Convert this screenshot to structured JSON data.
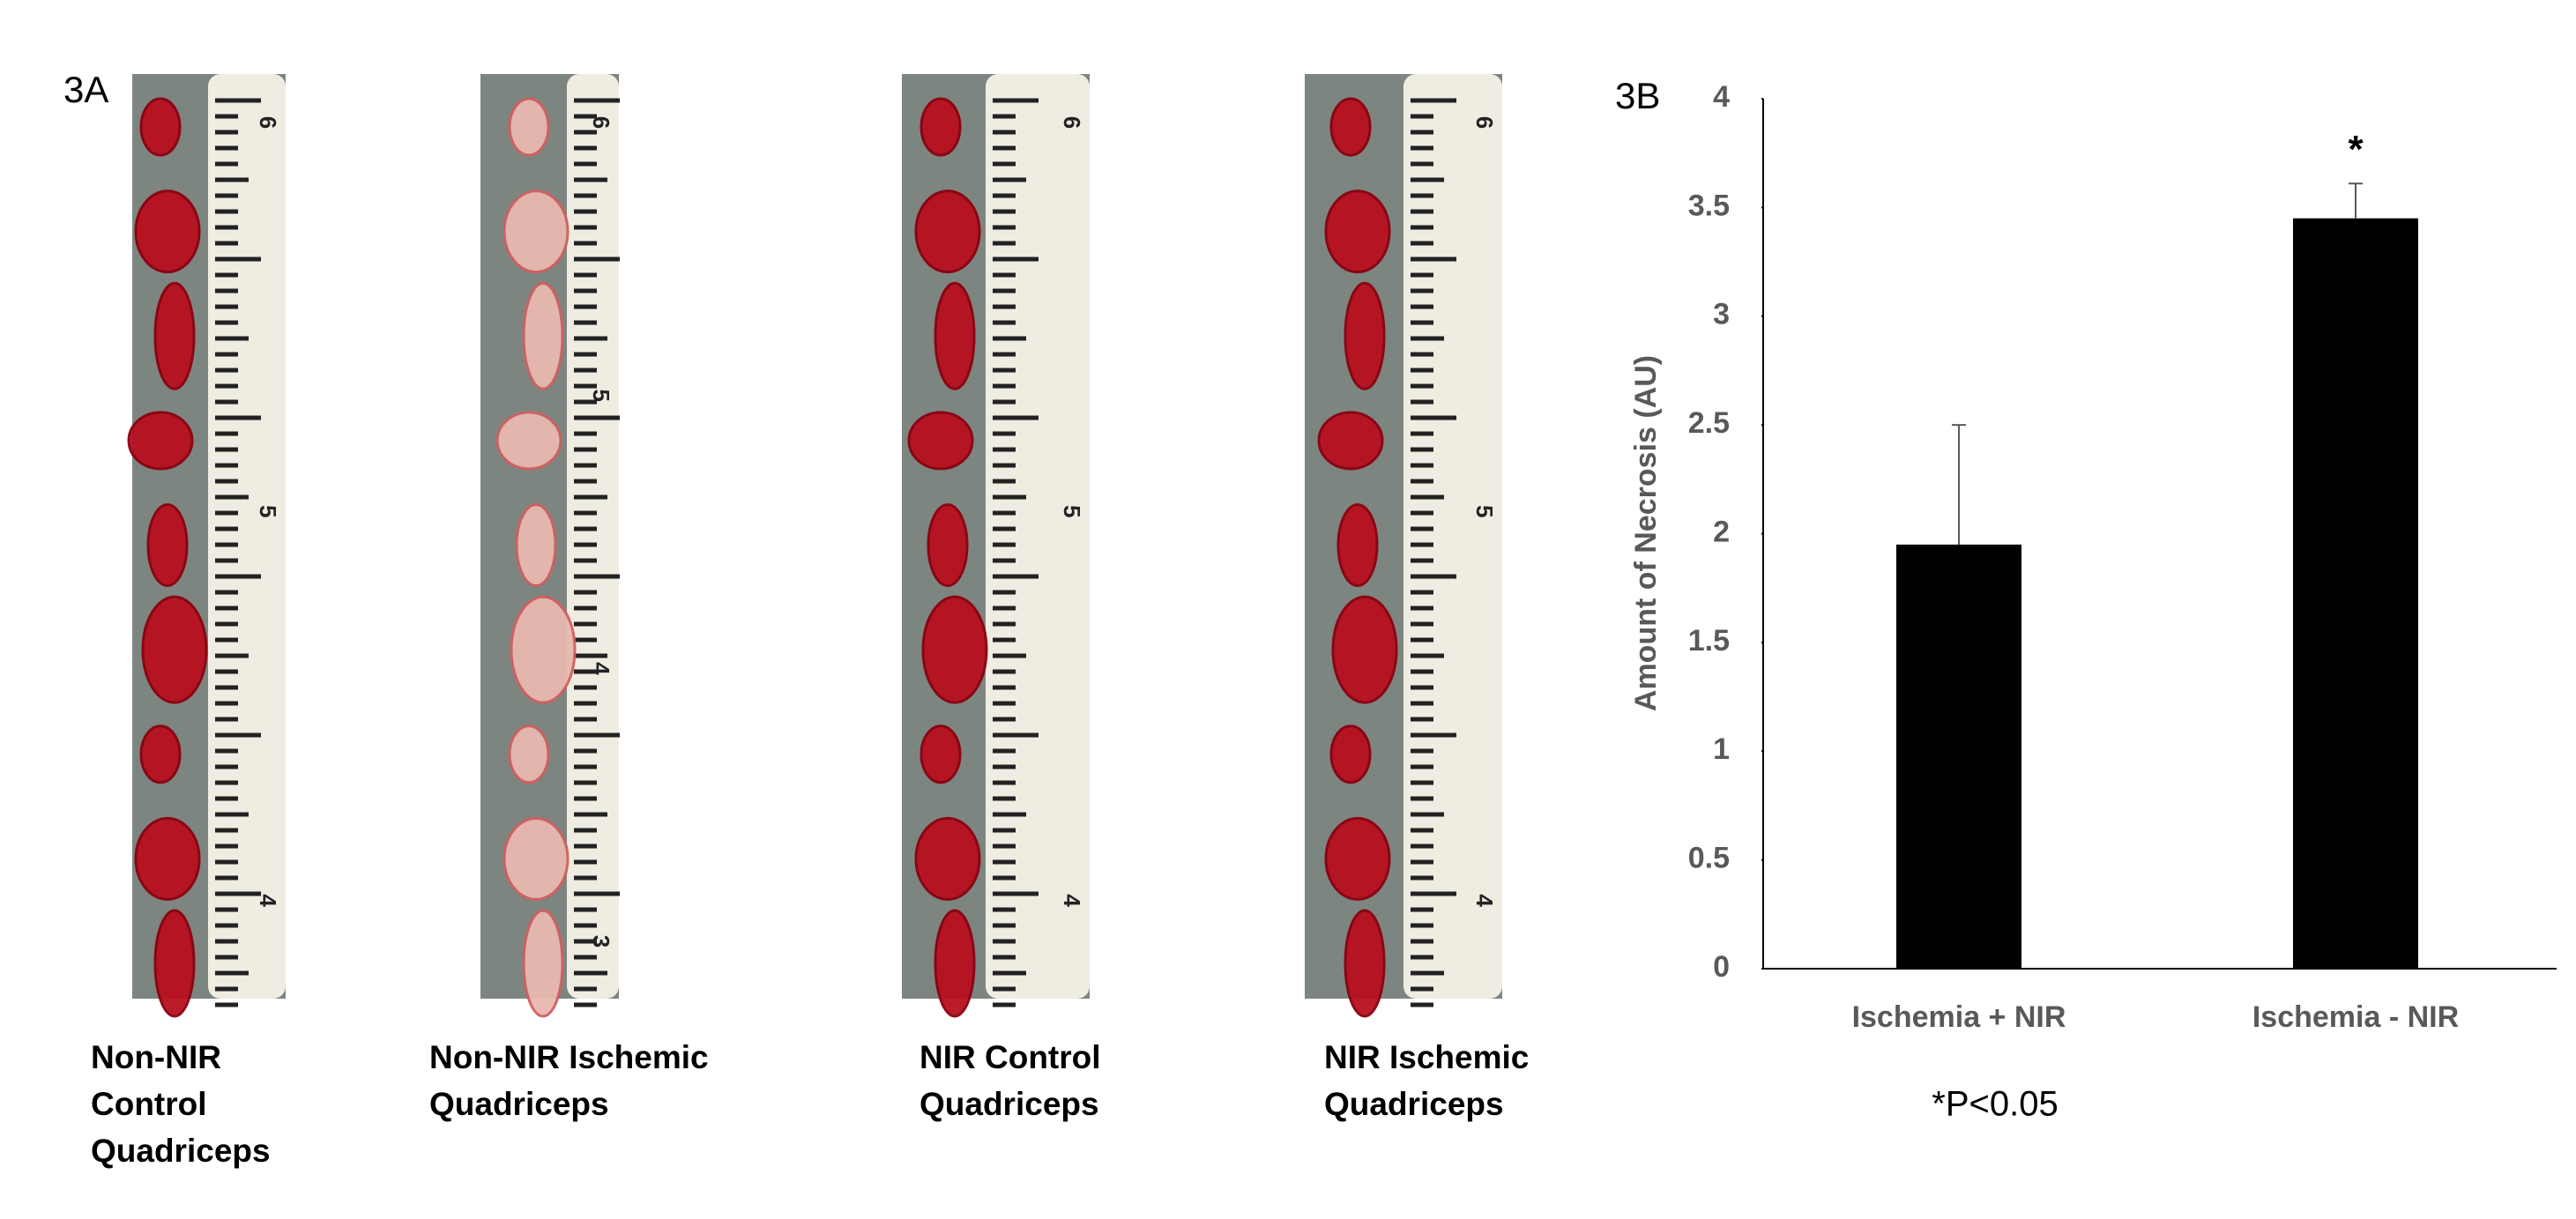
{
  "panel_a": {
    "label": "3A",
    "strips": [
      {
        "caption": [
          "Non-NIR",
          "Control",
          "Quadriceps"
        ],
        "ruler": [
          "6",
          "5",
          "4"
        ]
      },
      {
        "caption": [
          "Non-NIR Ischemic",
          "Quadriceps"
        ],
        "ruler": [
          "6",
          "5",
          "4",
          "3"
        ]
      },
      {
        "caption": [
          "NIR Control",
          "Quadriceps"
        ],
        "ruler": [
          "6",
          "5",
          "4"
        ]
      },
      {
        "caption": [
          "NIR Ischemic",
          "Quadriceps"
        ],
        "ruler": [
          "6",
          "5",
          "4"
        ]
      }
    ]
  },
  "chart_data": {
    "type": "bar",
    "panel_label": "3B",
    "y_label": "Amount of Necrosis (AU)",
    "categories": [
      "Ischemia + NIR",
      "Ischemia - NIR"
    ],
    "values": [
      1.95,
      3.45
    ],
    "errors": [
      0.55,
      0.16
    ],
    "color": "#000000",
    "ylim": [
      0,
      4
    ],
    "yticks": [
      0,
      0.5,
      1,
      1.5,
      2,
      2.5,
      3,
      3.5,
      4
    ],
    "annotations": [
      "*"
    ],
    "footnote": "*P<0.05"
  }
}
